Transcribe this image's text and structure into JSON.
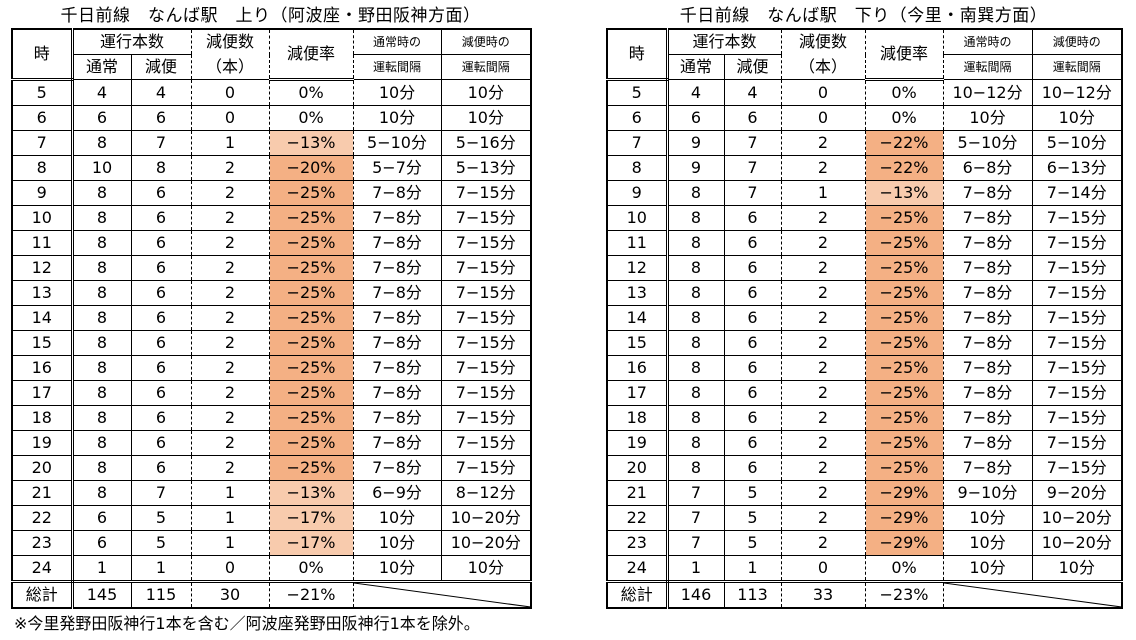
{
  "colors": {
    "highlight_light": "#F8CBAD",
    "highlight_dark": "#F4B084",
    "border": "#000000"
  },
  "headers": {
    "hour": "時",
    "trains": "運行本数",
    "normal": "通常",
    "reduced": "減便",
    "reduction_count_1": "減便数",
    "reduction_count_2": "（本）",
    "reduction_rate": "減便率",
    "normal_interval_1": "通常時の",
    "normal_interval_2": "運転間隔",
    "reduced_interval_1": "減便時の",
    "reduced_interval_2": "運転間隔",
    "total": "総計"
  },
  "tables": [
    {
      "title": "千日前線　なんば駅　上り（阿波座・野田阪神方面）",
      "rows": [
        {
          "hour": "5",
          "normal": "4",
          "reduced": "4",
          "diff": "0",
          "rate": "0%",
          "ni": "10分",
          "ri": "10分",
          "hl": ""
        },
        {
          "hour": "6",
          "normal": "6",
          "reduced": "6",
          "diff": "0",
          "rate": "0%",
          "ni": "10分",
          "ri": "10分",
          "hl": ""
        },
        {
          "hour": "7",
          "normal": "8",
          "reduced": "7",
          "diff": "1",
          "rate": "−13%",
          "ni": "5−10分",
          "ri": "5−16分",
          "hl": "light"
        },
        {
          "hour": "8",
          "normal": "10",
          "reduced": "8",
          "diff": "2",
          "rate": "−20%",
          "ni": "5−7分",
          "ri": "5−13分",
          "hl": "dark"
        },
        {
          "hour": "9",
          "normal": "8",
          "reduced": "6",
          "diff": "2",
          "rate": "−25%",
          "ni": "7−8分",
          "ri": "7−15分",
          "hl": "dark"
        },
        {
          "hour": "10",
          "normal": "8",
          "reduced": "6",
          "diff": "2",
          "rate": "−25%",
          "ni": "7−8分",
          "ri": "7−15分",
          "hl": "dark"
        },
        {
          "hour": "11",
          "normal": "8",
          "reduced": "6",
          "diff": "2",
          "rate": "−25%",
          "ni": "7−8分",
          "ri": "7−15分",
          "hl": "dark"
        },
        {
          "hour": "12",
          "normal": "8",
          "reduced": "6",
          "diff": "2",
          "rate": "−25%",
          "ni": "7−8分",
          "ri": "7−15分",
          "hl": "dark"
        },
        {
          "hour": "13",
          "normal": "8",
          "reduced": "6",
          "diff": "2",
          "rate": "−25%",
          "ni": "7−8分",
          "ri": "7−15分",
          "hl": "dark"
        },
        {
          "hour": "14",
          "normal": "8",
          "reduced": "6",
          "diff": "2",
          "rate": "−25%",
          "ni": "7−8分",
          "ri": "7−15分",
          "hl": "dark"
        },
        {
          "hour": "15",
          "normal": "8",
          "reduced": "6",
          "diff": "2",
          "rate": "−25%",
          "ni": "7−8分",
          "ri": "7−15分",
          "hl": "dark"
        },
        {
          "hour": "16",
          "normal": "8",
          "reduced": "6",
          "diff": "2",
          "rate": "−25%",
          "ni": "7−8分",
          "ri": "7−15分",
          "hl": "dark"
        },
        {
          "hour": "17",
          "normal": "8",
          "reduced": "6",
          "diff": "2",
          "rate": "−25%",
          "ni": "7−8分",
          "ri": "7−15分",
          "hl": "dark"
        },
        {
          "hour": "18",
          "normal": "8",
          "reduced": "6",
          "diff": "2",
          "rate": "−25%",
          "ni": "7−8分",
          "ri": "7−15分",
          "hl": "dark"
        },
        {
          "hour": "19",
          "normal": "8",
          "reduced": "6",
          "diff": "2",
          "rate": "−25%",
          "ni": "7−8分",
          "ri": "7−15分",
          "hl": "dark"
        },
        {
          "hour": "20",
          "normal": "8",
          "reduced": "6",
          "diff": "2",
          "rate": "−25%",
          "ni": "7−8分",
          "ri": "7−15分",
          "hl": "dark"
        },
        {
          "hour": "21",
          "normal": "8",
          "reduced": "7",
          "diff": "1",
          "rate": "−13%",
          "ni": "6−9分",
          "ri": "8−12分",
          "hl": "light"
        },
        {
          "hour": "22",
          "normal": "6",
          "reduced": "5",
          "diff": "1",
          "rate": "−17%",
          "ni": "10分",
          "ri": "10−20分",
          "hl": "light"
        },
        {
          "hour": "23",
          "normal": "6",
          "reduced": "5",
          "diff": "1",
          "rate": "−17%",
          "ni": "10分",
          "ri": "10−20分",
          "hl": "light"
        },
        {
          "hour": "24",
          "normal": "1",
          "reduced": "1",
          "diff": "0",
          "rate": "0%",
          "ni": "10分",
          "ri": "10分",
          "hl": ""
        }
      ],
      "total": {
        "normal": "145",
        "reduced": "115",
        "diff": "30",
        "rate": "−21%"
      }
    },
    {
      "title": "千日前線　なんば駅　下り（今里・南巽方面）",
      "rows": [
        {
          "hour": "5",
          "normal": "4",
          "reduced": "4",
          "diff": "0",
          "rate": "0%",
          "ni": "10−12分",
          "ri": "10−12分",
          "hl": ""
        },
        {
          "hour": "6",
          "normal": "6",
          "reduced": "6",
          "diff": "0",
          "rate": "0%",
          "ni": "10分",
          "ri": "10分",
          "hl": ""
        },
        {
          "hour": "7",
          "normal": "9",
          "reduced": "7",
          "diff": "2",
          "rate": "−22%",
          "ni": "5−10分",
          "ri": "5−10分",
          "hl": "dark"
        },
        {
          "hour": "8",
          "normal": "9",
          "reduced": "7",
          "diff": "2",
          "rate": "−22%",
          "ni": "6−8分",
          "ri": "6−13分",
          "hl": "dark"
        },
        {
          "hour": "9",
          "normal": "8",
          "reduced": "7",
          "diff": "1",
          "rate": "−13%",
          "ni": "7−8分",
          "ri": "7−14分",
          "hl": "light"
        },
        {
          "hour": "10",
          "normal": "8",
          "reduced": "6",
          "diff": "2",
          "rate": "−25%",
          "ni": "7−8分",
          "ri": "7−15分",
          "hl": "dark"
        },
        {
          "hour": "11",
          "normal": "8",
          "reduced": "6",
          "diff": "2",
          "rate": "−25%",
          "ni": "7−8分",
          "ri": "7−15分",
          "hl": "dark"
        },
        {
          "hour": "12",
          "normal": "8",
          "reduced": "6",
          "diff": "2",
          "rate": "−25%",
          "ni": "7−8分",
          "ri": "7−15分",
          "hl": "dark"
        },
        {
          "hour": "13",
          "normal": "8",
          "reduced": "6",
          "diff": "2",
          "rate": "−25%",
          "ni": "7−8分",
          "ri": "7−15分",
          "hl": "dark"
        },
        {
          "hour": "14",
          "normal": "8",
          "reduced": "6",
          "diff": "2",
          "rate": "−25%",
          "ni": "7−8分",
          "ri": "7−15分",
          "hl": "dark"
        },
        {
          "hour": "15",
          "normal": "8",
          "reduced": "6",
          "diff": "2",
          "rate": "−25%",
          "ni": "7−8分",
          "ri": "7−15分",
          "hl": "dark"
        },
        {
          "hour": "16",
          "normal": "8",
          "reduced": "6",
          "diff": "2",
          "rate": "−25%",
          "ni": "7−8分",
          "ri": "7−15分",
          "hl": "dark"
        },
        {
          "hour": "17",
          "normal": "8",
          "reduced": "6",
          "diff": "2",
          "rate": "−25%",
          "ni": "7−8分",
          "ri": "7−15分",
          "hl": "dark"
        },
        {
          "hour": "18",
          "normal": "8",
          "reduced": "6",
          "diff": "2",
          "rate": "−25%",
          "ni": "7−8分",
          "ri": "7−15分",
          "hl": "dark"
        },
        {
          "hour": "19",
          "normal": "8",
          "reduced": "6",
          "diff": "2",
          "rate": "−25%",
          "ni": "7−8分",
          "ri": "7−15分",
          "hl": "dark"
        },
        {
          "hour": "20",
          "normal": "8",
          "reduced": "6",
          "diff": "2",
          "rate": "−25%",
          "ni": "7−8分",
          "ri": "7−15分",
          "hl": "dark"
        },
        {
          "hour": "21",
          "normal": "7",
          "reduced": "5",
          "diff": "2",
          "rate": "−29%",
          "ni": "9−10分",
          "ri": "9−20分",
          "hl": "dark"
        },
        {
          "hour": "22",
          "normal": "7",
          "reduced": "5",
          "diff": "2",
          "rate": "−29%",
          "ni": "10分",
          "ri": "10−20分",
          "hl": "dark"
        },
        {
          "hour": "23",
          "normal": "7",
          "reduced": "5",
          "diff": "2",
          "rate": "−29%",
          "ni": "10分",
          "ri": "10−20分",
          "hl": "dark"
        },
        {
          "hour": "24",
          "normal": "1",
          "reduced": "1",
          "diff": "0",
          "rate": "0%",
          "ni": "10分",
          "ri": "10分",
          "hl": ""
        }
      ],
      "total": {
        "normal": "146",
        "reduced": "113",
        "diff": "33",
        "rate": "−23%"
      }
    }
  ],
  "footnote": "※今里発野田阪神行1本を含む／阿波座発野田阪神行1本を除外。"
}
